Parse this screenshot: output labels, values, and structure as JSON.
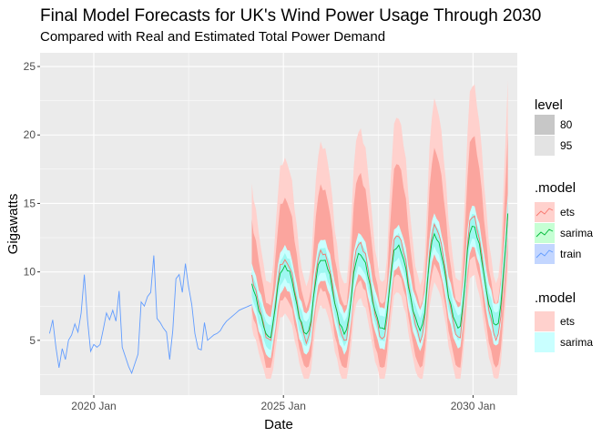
{
  "chart_data": {
    "type": "line",
    "title": "Final Model Forecasts for UK's Wind Power Usage Through 2030",
    "subtitle": "Compared with Real and Estimated Total Power Demand",
    "xlabel": "Date",
    "ylabel": "Gigawatts",
    "xlim": [
      "2018-08",
      "2031-03"
    ],
    "ylim": [
      1,
      26
    ],
    "x_ticks": [
      {
        "date": "2020-01",
        "label": "2020 Jan"
      },
      {
        "date": "2025-01",
        "label": "2025 Jan"
      },
      {
        "date": "2030-01",
        "label": "2030 Jan"
      }
    ],
    "y_ticks": [
      5,
      10,
      15,
      20,
      25
    ],
    "grid": true,
    "legend_position": "right",
    "colors": {
      "panel_bg": "#ebebeb",
      "grid": "#ffffff",
      "train": "#619cff",
      "sarima": "#00ba38",
      "ets": "#f8766d",
      "ets_band95": "#ffd1cd",
      "ets_band80": "#fba59e",
      "sarima_band95": "#c9ffff",
      "sarima_band80": "#9ef7f1",
      "level80": "#c7c7c7",
      "level95": "#e3e3e3"
    },
    "series": [
      {
        "name": "train",
        "x": [
          "2018-11",
          "2018-12",
          "2019-01",
          "2019-02",
          "2019-03",
          "2019-04",
          "2019-05",
          "2019-06",
          "2019-07",
          "2019-08",
          "2019-09",
          "2019-10",
          "2019-11",
          "2019-12",
          "2020-01",
          "2020-02",
          "2020-03",
          "2020-04",
          "2020-05",
          "2020-06",
          "2020-07",
          "2020-08",
          "2020-09",
          "2020-10",
          "2020-11",
          "2020-12",
          "2021-01",
          "2021-02",
          "2021-03",
          "2021-04",
          "2021-05",
          "2021-06",
          "2021-07",
          "2021-08",
          "2021-09",
          "2021-10",
          "2021-11",
          "2021-12",
          "2022-01",
          "2022-02",
          "2022-03",
          "2022-04",
          "2022-05",
          "2022-06",
          "2022-07",
          "2022-08",
          "2022-09",
          "2022-10",
          "2022-11",
          "2022-12",
          "2023-01",
          "2023-02",
          "2023-03",
          "2023-04",
          "2023-05",
          "2023-06",
          "2023-07",
          "2023-08",
          "2023-09",
          "2023-10",
          "2023-11",
          "2023-12",
          "2024-01",
          "2024-02",
          "2024-03"
        ],
        "values": [
          5.5,
          6.5,
          4.5,
          3.0,
          4.4,
          3.6,
          5.0,
          5.4,
          6.2,
          5.6,
          7.0,
          9.8,
          6.5,
          4.2,
          4.7,
          4.5,
          4.7,
          5.8,
          7.0,
          6.5,
          7.2,
          6.4,
          8.6,
          4.5,
          3.8,
          3.1,
          2.6,
          3.3,
          4.0,
          7.8,
          7.5,
          8.2,
          8.5,
          11.2,
          6.6,
          6.3,
          5.9,
          5.6,
          3.6,
          5.7,
          9.5,
          9.8,
          8.5,
          10.6,
          8.9,
          7.6,
          5.5,
          4.4,
          4.3,
          6.3,
          5.0,
          5.2,
          5.4,
          5.5,
          5.7,
          6.1,
          6.4,
          6.6,
          6.8,
          7.0,
          7.2,
          7.3,
          7.4,
          7.5,
          7.6
        ]
      },
      {
        "name": "sarima",
        "x": [
          "2024-03",
          "2024-06",
          "2024-09",
          "2024-12",
          "2025-03",
          "2025-06",
          "2025-09",
          "2025-12",
          "2026-03",
          "2026-06",
          "2026-09",
          "2026-12",
          "2027-03",
          "2027-06",
          "2027-09",
          "2027-12",
          "2028-03",
          "2028-06",
          "2028-09",
          "2028-12",
          "2029-03",
          "2029-06",
          "2029-09",
          "2029-12",
          "2030-03",
          "2030-06",
          "2030-09",
          "2030-12"
        ],
        "values": [
          9.0,
          6.8,
          5.2,
          10.0,
          9.8,
          6.9,
          5.5,
          10.6,
          10.2,
          7.1,
          5.6,
          11.0,
          10.4,
          7.3,
          5.8,
          11.6,
          10.8,
          7.4,
          5.9,
          12.4,
          11.2,
          7.6,
          6.0,
          13.0,
          11.8,
          7.8,
          6.2,
          14.2
        ]
      },
      {
        "name": "ets",
        "x": [
          "2024-03",
          "2024-06",
          "2024-09",
          "2024-12",
          "2025-03",
          "2025-06",
          "2025-09",
          "2025-12",
          "2026-03",
          "2026-06",
          "2026-09",
          "2026-12",
          "2027-03",
          "2027-06",
          "2027-09",
          "2027-12",
          "2028-03",
          "2028-06",
          "2028-09",
          "2028-12",
          "2029-03",
          "2029-06",
          "2029-09",
          "2029-12",
          "2030-03",
          "2030-06",
          "2030-09",
          "2030-12"
        ],
        "values": [
          9.5,
          7.0,
          5.0,
          10.5,
          10.2,
          7.0,
          5.0,
          11.2,
          10.6,
          7.1,
          5.0,
          11.8,
          11.0,
          7.2,
          5.1,
          12.4,
          11.4,
          7.3,
          5.1,
          13.0,
          11.8,
          7.4,
          5.2,
          13.8,
          12.2,
          7.5,
          5.2,
          14.4
        ]
      }
    ],
    "legends": [
      {
        "title": "level",
        "items": [
          "80",
          "95"
        ]
      },
      {
        "title": ".model",
        "items": [
          "ets",
          "sarima",
          "train"
        ]
      },
      {
        "title": ".model",
        "items": [
          "ets",
          "sarima"
        ]
      }
    ]
  }
}
